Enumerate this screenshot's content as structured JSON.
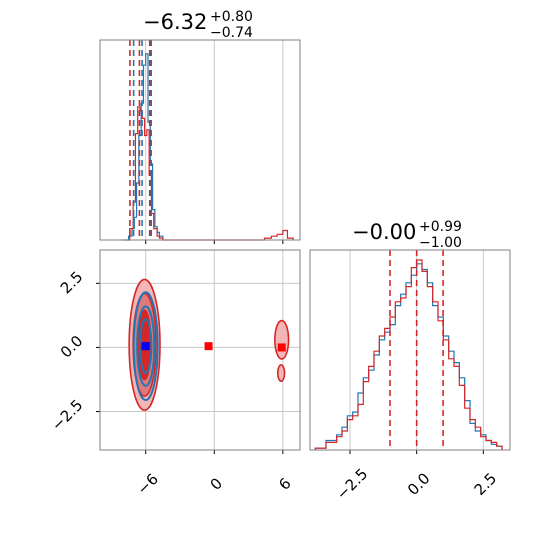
{
  "chart_data": [
    {
      "type": "histogram",
      "panel": "top-left",
      "title": {
        "value": "−6.32",
        "plus": "+0.80",
        "minus": "−0.74"
      },
      "xlim": [
        -10,
        7.5
      ],
      "xticks": [
        -6,
        0,
        6
      ],
      "xtick_labels": [
        "−6",
        "0",
        "6"
      ],
      "show_tick_labels": false,
      "grid": true,
      "series": [
        {
          "color": "#1f77b4",
          "bins": [
            [
              -8.1,
              0
            ],
            [
              -7.5,
              0.02
            ],
            [
              -7.2,
              0.06
            ],
            [
              -7.0,
              0.12
            ],
            [
              -6.8,
              0.3
            ],
            [
              -6.6,
              0.55
            ],
            [
              -6.4,
              0.72
            ],
            [
              -6.2,
              0.92
            ],
            [
              -6.0,
              0.98
            ],
            [
              -5.8,
              0.62
            ],
            [
              -5.6,
              0.4
            ],
            [
              -5.4,
              0.16
            ],
            [
              -5.2,
              0.07
            ],
            [
              -5.0,
              0.04
            ],
            [
              -4.8,
              0.02
            ],
            [
              -4.5,
              0
            ]
          ]
        },
        {
          "color": "#d62728",
          "bins": [
            [
              -7.6,
              0
            ],
            [
              -7.4,
              0.06
            ],
            [
              -7.1,
              0.2
            ],
            [
              -6.9,
              0.56
            ],
            [
              -6.7,
              0.7
            ],
            [
              -6.5,
              0.68
            ],
            [
              -6.3,
              0.64
            ],
            [
              -6.1,
              0.55
            ],
            [
              -5.9,
              0.58
            ],
            [
              -5.7,
              0.34
            ],
            [
              -5.5,
              0.14
            ],
            [
              -5.3,
              0.06
            ],
            [
              -5.0,
              0.02
            ],
            [
              -4.8,
              0.01
            ],
            [
              -4.5,
              0
            ],
            [
              4.4,
              0.01
            ],
            [
              5.0,
              0.02
            ],
            [
              5.5,
              0.03
            ],
            [
              6.0,
              0.05
            ],
            [
              6.4,
              0.01
            ],
            [
              6.9,
              0
            ]
          ]
        }
      ],
      "quantiles_blue": [
        -7.06,
        -6.32,
        -5.52
      ],
      "quantiles_red": [
        -7.38,
        -6.55,
        -5.65
      ]
    },
    {
      "type": "histogram",
      "panel": "bottom-right",
      "title": {
        "value": "−0.00",
        "plus": "+0.99",
        "minus": "−1.00"
      },
      "xlim": [
        -4,
        3.5
      ],
      "xticks": [
        -2.5,
        0.0,
        2.5
      ],
      "xtick_labels": [
        "−2.5",
        "0.0",
        "2.5"
      ],
      "grid": true,
      "series": [
        {
          "color": "#1f77b4",
          "bins": [
            [
              -3.8,
              0.01
            ],
            [
              -3.4,
              0.05
            ],
            [
              -3.0,
              0.08
            ],
            [
              -2.8,
              0.12
            ],
            [
              -2.6,
              0.18
            ],
            [
              -2.4,
              0.2
            ],
            [
              -2.2,
              0.3
            ],
            [
              -2.0,
              0.38
            ],
            [
              -1.8,
              0.42
            ],
            [
              -1.6,
              0.5
            ],
            [
              -1.4,
              0.58
            ],
            [
              -1.2,
              0.62
            ],
            [
              -1.0,
              0.66
            ],
            [
              -0.8,
              0.76
            ],
            [
              -0.6,
              0.82
            ],
            [
              -0.4,
              0.88
            ],
            [
              -0.2,
              0.92
            ],
            [
              0.0,
              0.98
            ],
            [
              0.2,
              0.95
            ],
            [
              0.4,
              0.88
            ],
            [
              0.6,
              0.76
            ],
            [
              0.8,
              0.7
            ],
            [
              1.0,
              0.6
            ],
            [
              1.2,
              0.52
            ],
            [
              1.4,
              0.46
            ],
            [
              1.6,
              0.38
            ],
            [
              1.8,
              0.26
            ],
            [
              2.0,
              0.14
            ],
            [
              2.2,
              0.1
            ],
            [
              2.4,
              0.08
            ],
            [
              2.6,
              0.05
            ],
            [
              2.8,
              0.03
            ],
            [
              3.0,
              0.02
            ],
            [
              3.2,
              0.01
            ]
          ]
        },
        {
          "color": "#d62728",
          "bins": [
            [
              -3.8,
              0.01
            ],
            [
              -3.4,
              0.04
            ],
            [
              -3.0,
              0.07
            ],
            [
              -2.8,
              0.1
            ],
            [
              -2.6,
              0.16
            ],
            [
              -2.4,
              0.18
            ],
            [
              -2.2,
              0.24
            ],
            [
              -2.0,
              0.36
            ],
            [
              -1.8,
              0.44
            ],
            [
              -1.6,
              0.52
            ],
            [
              -1.4,
              0.6
            ],
            [
              -1.2,
              0.64
            ],
            [
              -1.0,
              0.7
            ],
            [
              -0.8,
              0.78
            ],
            [
              -0.6,
              0.8
            ],
            [
              -0.4,
              0.86
            ],
            [
              -0.2,
              0.96
            ],
            [
              0.0,
              1.0
            ],
            [
              0.2,
              0.94
            ],
            [
              0.4,
              0.86
            ],
            [
              0.6,
              0.78
            ],
            [
              0.8,
              0.68
            ],
            [
              1.0,
              0.58
            ],
            [
              1.2,
              0.48
            ],
            [
              1.4,
              0.44
            ],
            [
              1.6,
              0.34
            ],
            [
              1.8,
              0.22
            ],
            [
              2.0,
              0.16
            ],
            [
              2.2,
              0.12
            ],
            [
              2.4,
              0.07
            ],
            [
              2.6,
              0.05
            ],
            [
              2.8,
              0.04
            ],
            [
              3.0,
              0.02
            ],
            [
              3.2,
              0.01
            ]
          ]
        }
      ],
      "quantiles_red": [
        -1.0,
        0.0,
        0.99
      ]
    },
    {
      "type": "contour",
      "panel": "bottom-left",
      "xlim": [
        -10,
        7.5
      ],
      "ylim": [
        -4,
        3.8
      ],
      "xticks": [
        -6,
        0,
        6
      ],
      "xtick_labels": [
        "−6",
        "0",
        "6"
      ],
      "yticks": [
        -2.5,
        0.0,
        2.5
      ],
      "ytick_labels": [
        "−2.5",
        "0.0",
        "2.5"
      ],
      "grid": true,
      "series": [
        {
          "color": "#1f77b4",
          "levels": [
            {
              "cx": -6.0,
              "cy": 0.05,
              "rx": 1.05,
              "ry": 2.1
            },
            {
              "cx": -6.0,
              "cy": 0.05,
              "rx": 0.75,
              "ry": 1.55
            },
            {
              "cx": -6.0,
              "cy": 0.05,
              "rx": 0.5,
              "ry": 1.05
            }
          ],
          "marker": {
            "x": -6.0,
            "y": 0.05,
            "color": "#0000ff"
          }
        },
        {
          "color": "#d62728",
          "levels": [
            {
              "cx": -6.1,
              "cy": 0.1,
              "rx": 1.35,
              "ry": 2.55
            },
            {
              "cx": -6.1,
              "cy": 0.1,
              "rx": 1.0,
              "ry": 2.0
            },
            {
              "cx": -6.1,
              "cy": 0.1,
              "rx": 0.55,
              "ry": 1.35
            }
          ],
          "islands": [
            {
              "cx": 5.9,
              "cy": 0.3,
              "rx": 0.6,
              "ry": 0.75
            },
            {
              "cx": 5.85,
              "cy": -1.0,
              "rx": 0.3,
              "ry": 0.32
            }
          ],
          "markers": [
            {
              "x": -6.1,
              "y": 0.05
            },
            {
              "x": -0.5,
              "y": 0.05
            },
            {
              "x": 5.9,
              "y": 0.0
            }
          ]
        }
      ]
    }
  ]
}
